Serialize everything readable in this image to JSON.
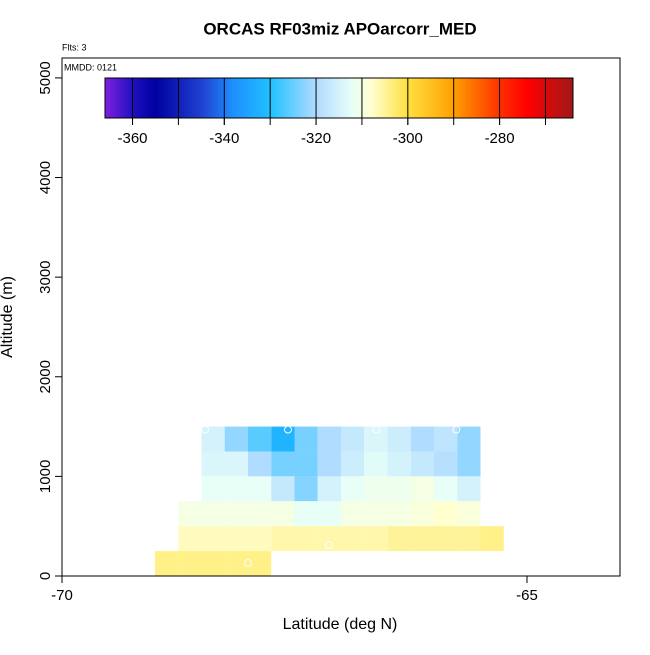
{
  "chart_data": {
    "type": "heatmap",
    "title": "ORCAS RF03miz APOarcorr_MED",
    "flights_label": "Flts: 3",
    "date_label": "MMDD: 0121",
    "x_label": "Latitude (deg N)",
    "y_label": "Altitude (m)",
    "xlim": [
      -70,
      -64
    ],
    "xticks": [
      -70,
      -65
    ],
    "ylim": [
      0,
      5200
    ],
    "yticks": [
      0,
      1000,
      2000,
      3000,
      4000,
      5000
    ],
    "colorbar": {
      "lim": [
        -366,
        -264
      ],
      "ticks": [
        -360,
        -340,
        -320,
        -300,
        -280
      ],
      "segment_edges": [
        -360,
        -350,
        -340,
        -330,
        -320,
        -310,
        -300,
        -290,
        -280,
        -270
      ],
      "stops": [
        -366,
        -360,
        -355,
        -345,
        -338,
        -330,
        -320,
        -312,
        -308,
        -300,
        -290,
        -280,
        -274,
        -264
      ],
      "colors": [
        "#8020e0",
        "#2010c0",
        "#0000a0",
        "#2040d0",
        "#1e90ff",
        "#20c0ff",
        "#b0dcff",
        "#e8fff8",
        "#ffffd0",
        "#ffe040",
        "#ffa000",
        "#ff3000",
        "#ff0000",
        "#a01818"
      ]
    },
    "rows": [
      {
        "ybin": [
          1250,
          1500
        ],
        "xbins": [
          -68.5,
          -68.25,
          -68,
          -67.75,
          -67.5,
          -67.25,
          -67,
          -66.75,
          -66.5,
          -66.25,
          -66,
          -65.75,
          -65.5
        ],
        "values": [
          -315,
          -322,
          -326,
          -332,
          -324,
          -320,
          -317,
          -314,
          -316,
          -320,
          -318,
          -322
        ]
      },
      {
        "ybin": [
          1000,
          1250
        ],
        "xbins": [
          -68.5,
          -68.25,
          -68,
          -67.75,
          -67.5,
          -67.25,
          -67,
          -66.75,
          -66.5,
          -66.25,
          -66,
          -65.75,
          -65.5
        ],
        "values": [
          -314,
          -314,
          -320,
          -324,
          -324,
          -320,
          -316,
          -313,
          -315,
          -317,
          -319,
          -322
        ]
      },
      {
        "ybin": [
          750,
          1000
        ],
        "xbins": [
          -68.5,
          -68.25,
          -68,
          -67.75,
          -67.5,
          -67.25,
          -67,
          -66.75,
          -66.5,
          -66.25,
          -66,
          -65.75,
          -65.5
        ],
        "values": [
          -312,
          -312,
          -312,
          -317,
          -323,
          -315,
          -312,
          -311,
          -311,
          -310,
          -312,
          -315
        ]
      },
      {
        "ybin": [
          500,
          750
        ],
        "xbins": [
          -68.75,
          -68.5,
          -68.25,
          -68,
          -67.75,
          -67.5,
          -67.25,
          -67,
          -66.75,
          -66.5,
          -66.25,
          -66,
          -65.75,
          -65.5
        ],
        "values": [
          -310,
          -310,
          -310,
          -310,
          -310,
          -312,
          -312,
          -310,
          -310,
          -310,
          -309,
          -308,
          -309
        ]
      },
      {
        "ybin": [
          250,
          500
        ],
        "xbins": [
          -68.75,
          -68.5,
          -68.25,
          -68,
          -67.75,
          -67.5,
          -67.25,
          -67,
          -66.75,
          -66.5,
          -66.25,
          -66,
          -65.75,
          -65.5,
          -65.25
        ],
        "values": [
          -307,
          -307,
          -307,
          -307,
          -306,
          -306,
          -306,
          -306,
          -306,
          -305,
          -305,
          -305,
          -305,
          -304
        ]
      },
      {
        "ybin": [
          0,
          250
        ],
        "xbins": [
          -69,
          -68.75,
          -68.5,
          -68.25,
          -68,
          -67.75
        ],
        "values": [
          -304,
          -304,
          -304,
          -304,
          -304
        ]
      }
    ],
    "points": {
      "x": [
        -68.46,
        -67.57,
        -66.62,
        -65.76,
        -67.13,
        -68.0
      ],
      "y": [
        1470,
        1470,
        1470,
        1470,
        310,
        130
      ]
    }
  }
}
